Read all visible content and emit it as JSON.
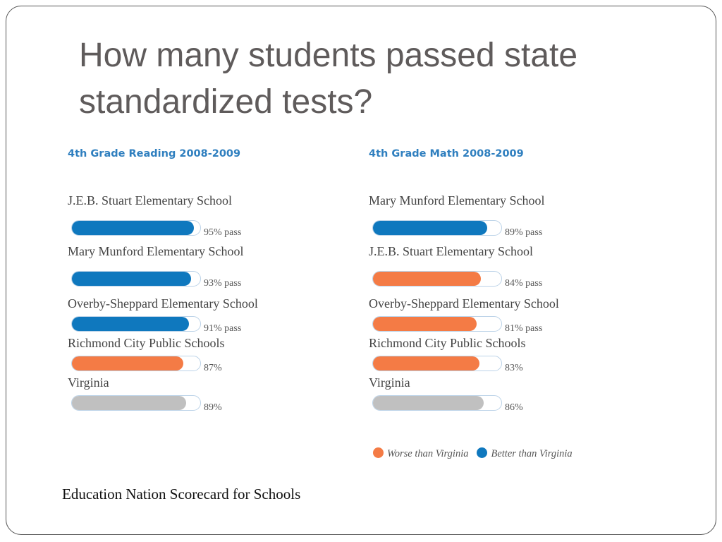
{
  "slide": {
    "title": "How many students passed state standardized tests?",
    "caption": "Education Nation Scorecard for Schools"
  },
  "colors": {
    "better": "#0f78be",
    "worse": "#f47b45",
    "state": "#c0c0c0"
  },
  "legend": {
    "worse_label": "Worse than Virginia",
    "better_label": "Better than Virginia"
  },
  "chart_data": [
    {
      "type": "bar",
      "title": "4th Grade Reading 2008-2009",
      "unit": "percent passing",
      "xlim": [
        0,
        100
      ],
      "bars": [
        {
          "label": "J.E.B. Stuart Elementary School",
          "value": 95,
          "value_text": "95% pass",
          "category": "better"
        },
        {
          "label": "Mary Munford Elementary School",
          "value": 93,
          "value_text": "93% pass",
          "category": "better"
        },
        {
          "label": "Overby-Sheppard Elementary School",
          "value": 91,
          "value_text": "91% pass",
          "category": "better"
        },
        {
          "label": "Richmond City Public Schools",
          "value": 87,
          "value_text": "87%",
          "category": "worse"
        },
        {
          "label": "Virginia",
          "value": 89,
          "value_text": "89%",
          "category": "state"
        }
      ]
    },
    {
      "type": "bar",
      "title": "4th Grade Math 2008-2009",
      "unit": "percent passing",
      "xlim": [
        0,
        100
      ],
      "bars": [
        {
          "label": "Mary Munford Elementary School",
          "value": 89,
          "value_text": "89% pass",
          "category": "better"
        },
        {
          "label": "J.E.B. Stuart Elementary School",
          "value": 84,
          "value_text": "84% pass",
          "category": "worse"
        },
        {
          "label": "Overby-Sheppard Elementary School",
          "value": 81,
          "value_text": "81% pass",
          "category": "worse"
        },
        {
          "label": "Richmond City Public Schools",
          "value": 83,
          "value_text": "83%",
          "category": "worse"
        },
        {
          "label": "Virginia",
          "value": 86,
          "value_text": "86%",
          "category": "state"
        }
      ]
    }
  ]
}
